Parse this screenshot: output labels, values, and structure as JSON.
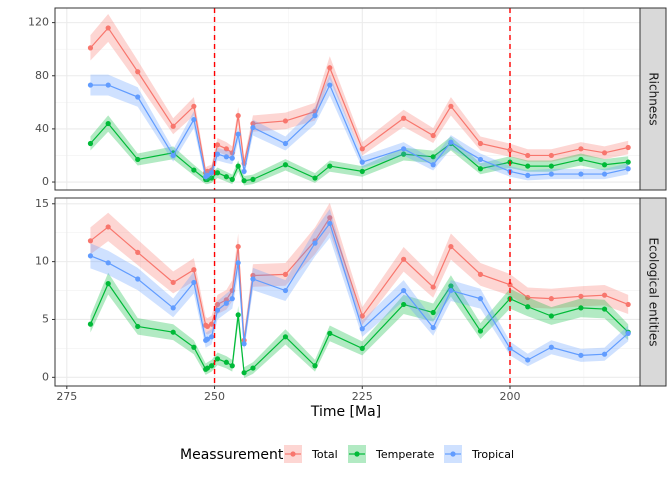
{
  "chart_data": {
    "type": "line",
    "x_axis_title": "Time [Ma]",
    "x_ticks": [
      275,
      250,
      225,
      200
    ],
    "x_domain": [
      277,
      178
    ],
    "x_reversed": true,
    "reference_lines": [
      250,
      200
    ],
    "reference_line_color": "#ff0000",
    "legend_title": "Meassurement",
    "legend_position": "bottom",
    "grid": true,
    "series_colors": {
      "Total": "#F8766D",
      "Temperate": "#00BA38",
      "Tropical": "#619CFF"
    },
    "panels": [
      {
        "label": "Richness",
        "ylim": [
          -6,
          131
        ],
        "y_ticks": [
          0,
          40,
          80,
          120
        ],
        "x": [
          271,
          268,
          263,
          257,
          253.5,
          251.5,
          251.2,
          250.5,
          249.5,
          248,
          247,
          246,
          245,
          243.5,
          238,
          233,
          230.5,
          225,
          218,
          213,
          210,
          205,
          200,
          197,
          193,
          188,
          184,
          180
        ],
        "series": [
          {
            "name": "Total",
            "values": [
              101,
              116,
              83,
              42,
              57,
              7,
              8,
              9,
              28,
              25,
              22,
              50,
              14,
              44,
              46,
              53,
              86,
              25,
              48,
              35,
              57,
              29,
              24,
              20,
              20,
              25,
              22,
              26
            ]
          },
          {
            "name": "Temperate",
            "values": [
              29,
              44,
              17,
              22,
              9,
              2,
              2,
              3,
              7,
              4,
              2,
              12,
              1,
              2,
              13,
              3,
              12,
              8,
              21,
              19,
              29,
              10,
              15,
              12,
              12,
              17,
              13,
              15
            ]
          },
          {
            "name": "Tropical",
            "values": [
              73,
              73,
              64,
              20,
              47,
              4,
              5,
              7,
              21,
              19,
              18,
              36,
              8,
              41,
              29,
              50,
              73,
              15,
              25,
              13,
              30,
              17,
              8,
              5,
              6,
              6,
              6,
              10
            ]
          }
        ]
      },
      {
        "label": "Ecological entities",
        "ylim": [
          -0.75,
          15.5
        ],
        "y_ticks": [
          0,
          5,
          10,
          15
        ],
        "x": [
          271,
          268,
          263,
          257,
          253.5,
          251.5,
          251.2,
          250.5,
          249.5,
          248,
          247,
          246,
          245,
          243.5,
          238,
          233,
          230.5,
          225,
          218,
          213,
          210,
          205,
          200,
          197,
          193,
          188,
          184,
          180
        ],
        "series": [
          {
            "name": "Total",
            "values": [
              11.8,
              13.0,
              10.8,
              8.2,
              9.3,
              4.5,
              4.4,
              4.6,
              6.3,
              6.7,
              7.5,
              11.3,
              3.2,
              8.8,
              8.9,
              11.8,
              13.8,
              5.3,
              10.2,
              7.8,
              11.3,
              8.9,
              8.0,
              6.9,
              6.8,
              7.0,
              7.1,
              6.3
            ]
          },
          {
            "name": "Temperate",
            "values": [
              4.6,
              8.1,
              4.4,
              3.9,
              2.6,
              0.7,
              0.8,
              1.0,
              1.6,
              1.3,
              1.0,
              5.4,
              0.4,
              0.8,
              3.5,
              1.0,
              3.8,
              2.5,
              6.3,
              5.6,
              7.9,
              4.0,
              6.8,
              6.1,
              5.3,
              6.0,
              5.9,
              3.9
            ]
          },
          {
            "name": "Tropical",
            "values": [
              10.5,
              9.9,
              8.5,
              6.0,
              8.2,
              3.2,
              3.3,
              3.5,
              5.8,
              6.4,
              6.8,
              9.9,
              2.9,
              8.5,
              7.5,
              11.6,
              13.3,
              4.2,
              7.5,
              4.3,
              7.5,
              6.8,
              2.5,
              1.5,
              2.6,
              1.9,
              2.0,
              3.8
            ]
          }
        ]
      }
    ]
  }
}
